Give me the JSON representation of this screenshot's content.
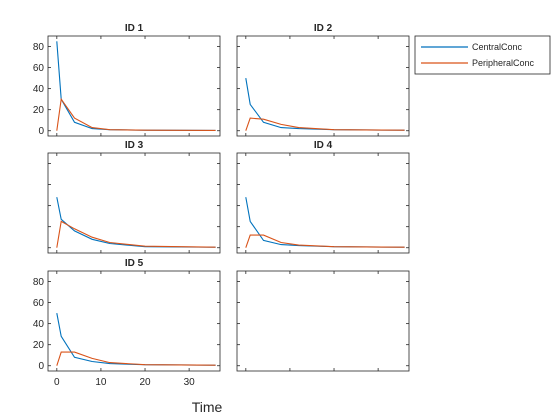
{
  "chart_data": {
    "type": "line",
    "xlabel": "Time",
    "xlim": [
      -2,
      37
    ],
    "ylim": [
      -5,
      90
    ],
    "xticks": [
      0,
      10,
      20,
      30
    ],
    "yticks": [
      0,
      20,
      40,
      60,
      80
    ],
    "grid": false,
    "legend_position": "outside-top-right",
    "colors": {
      "CentralConc": "#0072BD",
      "PeripheralConc": "#D95319"
    },
    "legend": [
      "CentralConc",
      "PeripheralConc"
    ],
    "panels": [
      {
        "title": "ID 1",
        "series": [
          {
            "name": "CentralConc",
            "x": [
              0,
              1,
              4,
              8,
              12,
              20,
              36
            ],
            "y": [
              85,
              30,
              8,
              2,
              1,
              0.5,
              0.3
            ]
          },
          {
            "name": "PeripheralConc",
            "x": [
              0,
              1,
              4,
              8,
              12,
              20,
              36
            ],
            "y": [
              0,
              30,
              12,
              3,
              1,
              0.5,
              0.3
            ]
          }
        ]
      },
      {
        "title": "ID 2",
        "series": [
          {
            "name": "CentralConc",
            "x": [
              0,
              1,
              4,
              8,
              12,
              20,
              36
            ],
            "y": [
              50,
              25,
              8,
              3,
              2,
              1,
              0.5
            ]
          },
          {
            "name": "PeripheralConc",
            "x": [
              0,
              1,
              4,
              8,
              12,
              20,
              36
            ],
            "y": [
              0,
              12,
              11,
              6,
              3,
              1,
              0.5
            ]
          }
        ]
      },
      {
        "title": "ID 3",
        "series": [
          {
            "name": "CentralConc",
            "x": [
              0,
              1,
              4,
              8,
              12,
              20,
              36
            ],
            "y": [
              48,
              27,
              16,
              8,
              4,
              1,
              0.5
            ]
          },
          {
            "name": "PeripheralConc",
            "x": [
              0,
              1,
              4,
              8,
              12,
              20,
              36
            ],
            "y": [
              0,
              25,
              18,
              10,
              5,
              1.5,
              0.5
            ]
          }
        ]
      },
      {
        "title": "ID 4",
        "series": [
          {
            "name": "CentralConc",
            "x": [
              0,
              1,
              4,
              8,
              12,
              20,
              36
            ],
            "y": [
              48,
              25,
              7,
              3,
              2,
              1,
              0.5
            ]
          },
          {
            "name": "PeripheralConc",
            "x": [
              0,
              1,
              4,
              8,
              12,
              20,
              36
            ],
            "y": [
              0,
              12,
              12,
              5,
              2.5,
              1,
              0.5
            ]
          }
        ]
      },
      {
        "title": "ID 5",
        "series": [
          {
            "name": "CentralConc",
            "x": [
              0,
              1,
              4,
              8,
              12,
              20,
              36
            ],
            "y": [
              50,
              28,
              8,
              4,
              2,
              1,
              0.5
            ]
          },
          {
            "name": "PeripheralConc",
            "x": [
              0,
              1,
              4,
              8,
              12,
              20,
              36
            ],
            "y": [
              0,
              13,
              13,
              7,
              3,
              1,
              0.5
            ]
          }
        ]
      },
      {
        "title": "",
        "series": []
      }
    ]
  }
}
